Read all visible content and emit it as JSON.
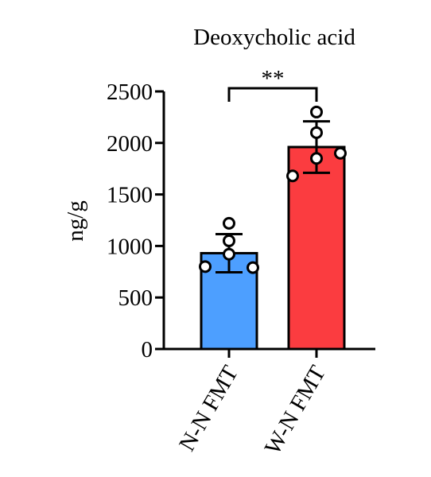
{
  "chart_data": {
    "type": "bar",
    "title": "Deoxycholic acid",
    "ylabel": "ng/g",
    "xlabel": "",
    "ylim": [
      0,
      2500
    ],
    "yticks": [
      0,
      500,
      1000,
      1500,
      2000,
      2500
    ],
    "categories": [
      "N-N FMT",
      "W-N FMT"
    ],
    "values": [
      930,
      1960
    ],
    "error": [
      185,
      250
    ],
    "bar_colors": [
      "#4D9FFF",
      "#FB3C40"
    ],
    "points": [
      [
        1220,
        1050,
        920,
        800,
        790
      ],
      [
        2300,
        2100,
        1850,
        1680,
        1900
      ]
    ],
    "significance": {
      "label": "**",
      "from": 0,
      "to": 1
    },
    "grid": false,
    "legend": "none"
  }
}
